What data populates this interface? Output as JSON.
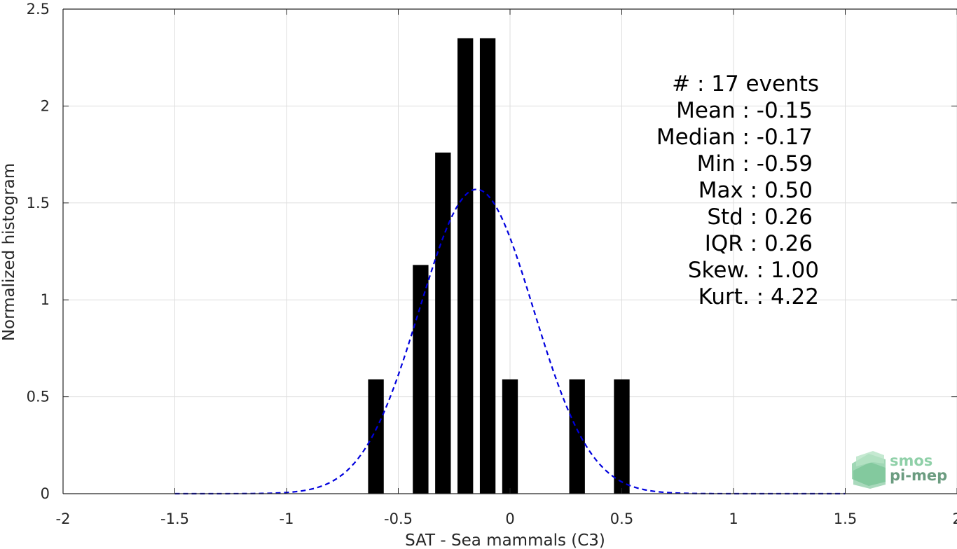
{
  "chart_data": {
    "type": "bar",
    "xlabel": "SAT - Sea mammals (C3)",
    "ylabel": "Normalized histogram",
    "xlim": [
      -2,
      2
    ],
    "ylim": [
      0,
      2.5
    ],
    "x_ticks": [
      -2,
      -1.5,
      -1,
      -0.5,
      0,
      0.5,
      1,
      1.5,
      2
    ],
    "x_tick_labels": [
      "-2",
      "-1.5",
      "-1",
      "-0.5",
      "0",
      "0.5",
      "1",
      "1.5",
      "2"
    ],
    "y_ticks": [
      0,
      0.5,
      1,
      1.5,
      2,
      2.5
    ],
    "y_tick_labels": [
      "0",
      "0.5",
      "1",
      "1.5",
      "2",
      "2.5"
    ],
    "grid": true,
    "bar_width": 0.07,
    "bars": [
      {
        "x": -0.6,
        "value": 0.59
      },
      {
        "x": -0.4,
        "value": 1.18
      },
      {
        "x": -0.3,
        "value": 1.76
      },
      {
        "x": -0.2,
        "value": 2.35
      },
      {
        "x": -0.1,
        "value": 2.35
      },
      {
        "x": 0.0,
        "value": 0.59
      },
      {
        "x": 0.3,
        "value": 0.59
      },
      {
        "x": 0.5,
        "value": 0.59
      }
    ],
    "fit_curve": {
      "style": "dashed",
      "color": "#0000dd",
      "mean": -0.15,
      "std": 0.255,
      "peak": 1.57,
      "x_range": [
        -1.5,
        1.5
      ]
    },
    "annotation_lines": [
      "#  : 17 events",
      "Mean : -0.15",
      "Median : -0.17",
      "Min : -0.59",
      "Max : 0.50",
      "Std : 0.26",
      "IQR : 0.26",
      "Skew. : 1.00",
      "Kurt. : 4.22"
    ]
  },
  "logo": {
    "line1": "smos",
    "line2": "pi-mep"
  },
  "colors": {
    "bar": "#000000",
    "curve": "#0000dd",
    "grid": "#dedede",
    "axis": "#262626",
    "logo_light": "#8fd0a8",
    "logo_dark": "#6b9c80"
  }
}
